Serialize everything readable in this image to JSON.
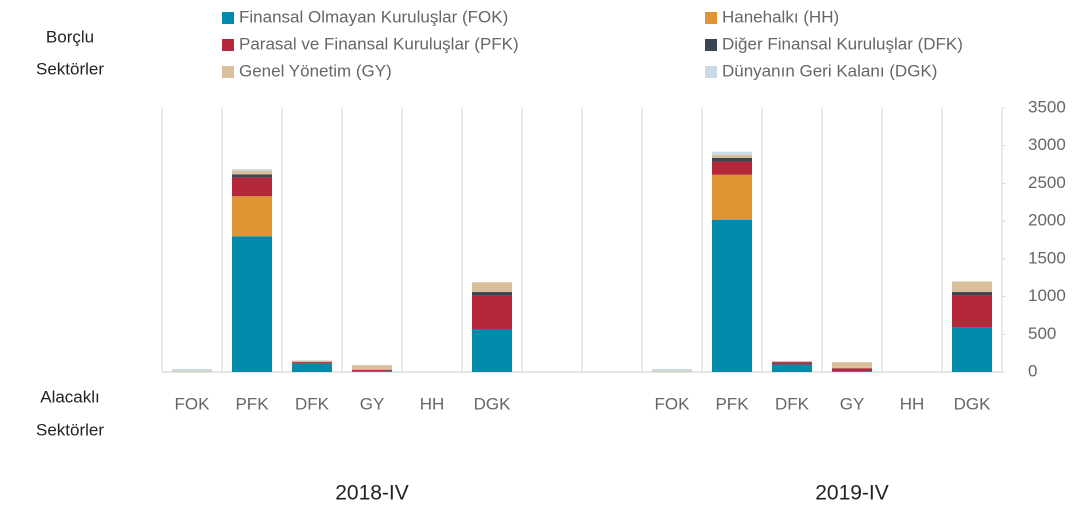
{
  "chart_data": {
    "type": "stacked_bar",
    "categories": [
      "FOK",
      "PFK",
      "DFK",
      "GY",
      "HH",
      "DGK",
      null,
      null,
      "FOK",
      "PFK",
      "DFK",
      "GY",
      "HH",
      "DGK"
    ],
    "group_labels": [
      "2018-IV",
      "2019-IV"
    ],
    "top_label": [
      "Borçlu",
      "Sektörler"
    ],
    "bottom_label": [
      "Alacaklı",
      "Sektörler"
    ],
    "series": [
      {
        "name": "Finansal Olmayan Kuruluşlar (FOK)",
        "color": "#008bad",
        "values": [
          0,
          1800,
          110,
          10,
          0,
          570,
          null,
          null,
          0,
          2015,
          100,
          10,
          0,
          595
        ]
      },
      {
        "name": "Hanehalkı (HH)",
        "color": "#e09433",
        "values": [
          0,
          530,
          0,
          0,
          0,
          0,
          null,
          null,
          0,
          600,
          0,
          0,
          0,
          0
        ]
      },
      {
        "name": "Parasal ve Finansal Kuruluşlar (PFK)",
        "color": "#b5273a",
        "values": [
          0,
          250,
          20,
          20,
          0,
          440,
          null,
          null,
          0,
          175,
          30,
          40,
          0,
          425
        ]
      },
      {
        "name": "Diğer Finansal Kuruluşlar (DFK)",
        "color": "#3b4453",
        "values": [
          0,
          40,
          5,
          0,
          0,
          50,
          null,
          null,
          0,
          50,
          5,
          0,
          0,
          40
        ]
      },
      {
        "name": "Genel Yönetim (GY)",
        "color": "#d9bf9b",
        "values": [
          10,
          50,
          15,
          60,
          0,
          130,
          null,
          null,
          10,
          40,
          10,
          80,
          0,
          140
        ]
      },
      {
        "name": "Dünyanın Geri Kalanı (DGK)",
        "color": "#c9d9e6",
        "values": [
          30,
          20,
          5,
          0,
          0,
          0,
          null,
          null,
          30,
          40,
          0,
          0,
          0,
          0
        ]
      }
    ],
    "ylim": [
      0,
      3500
    ],
    "yticks": [
      0,
      500,
      1000,
      1500,
      2000,
      2500,
      3000,
      3500
    ],
    "y_axis_side": "right"
  }
}
